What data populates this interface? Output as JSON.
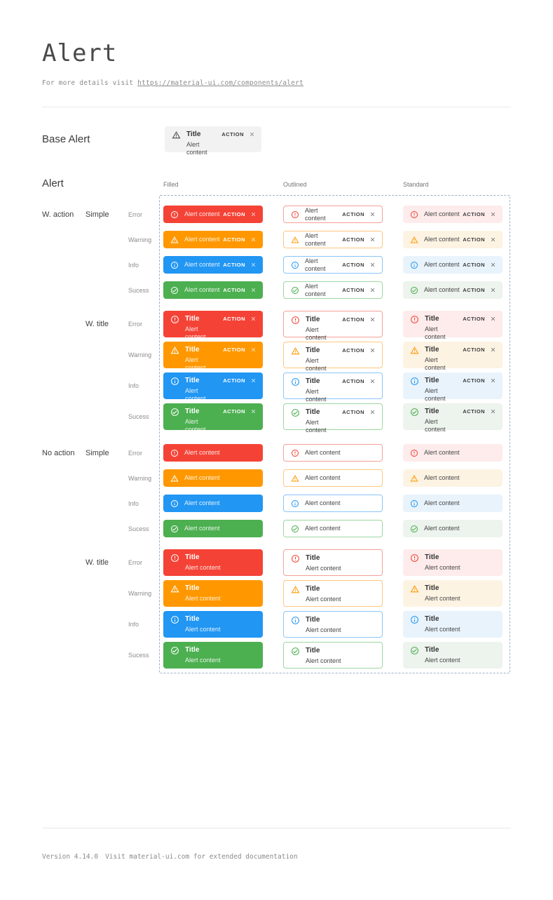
{
  "header": {
    "title": "Alert",
    "subtitle_prefix": "For more details visit ",
    "subtitle_link": "https://material-ui.com/components/alert"
  },
  "footer": {
    "version": "Version 4.14.0",
    "note": "Visit material-ui.com for extended documentation"
  },
  "base_alert": {
    "section_label": "Base Alert",
    "title": "Title",
    "content": "Alert content",
    "action": "ACTION",
    "icon": "warning-icon",
    "bg": "#f2f2f2"
  },
  "alert_section": {
    "section_label": "Alert",
    "variant_headers": [
      "Filled",
      "Outlined",
      "Standard"
    ],
    "alert_title": "Title",
    "alert_content": "Alert content",
    "action": "ACTION",
    "dashed_border_color": "#9cb2c8",
    "groups": [
      {
        "label": "W. action",
        "has_action": true,
        "subgroups": [
          {
            "label": "Simple",
            "has_title": false
          },
          {
            "label": "W. title",
            "has_title": true
          }
        ]
      },
      {
        "label": "No action",
        "has_action": false,
        "subgroups": [
          {
            "label": "Simple",
            "has_title": false
          },
          {
            "label": "W. title",
            "has_title": true
          }
        ]
      }
    ],
    "severities": [
      {
        "label": "Error",
        "icon": "error-icon",
        "color": "#f44336",
        "border": "#f5a098",
        "standard_bg": "#fdeceb"
      },
      {
        "label": "Warning",
        "icon": "warning-icon",
        "color": "#ff9800",
        "border": "#ffc77d",
        "standard_bg": "#fdf3e3"
      },
      {
        "label": "Info",
        "icon": "info-icon",
        "color": "#2196f3",
        "border": "#8bc5f8",
        "standard_bg": "#e8f3fc"
      },
      {
        "label": "Sucess",
        "icon": "success-icon",
        "color": "#4caf50",
        "border": "#9ed6a0",
        "standard_bg": "#edf3ed"
      }
    ]
  }
}
